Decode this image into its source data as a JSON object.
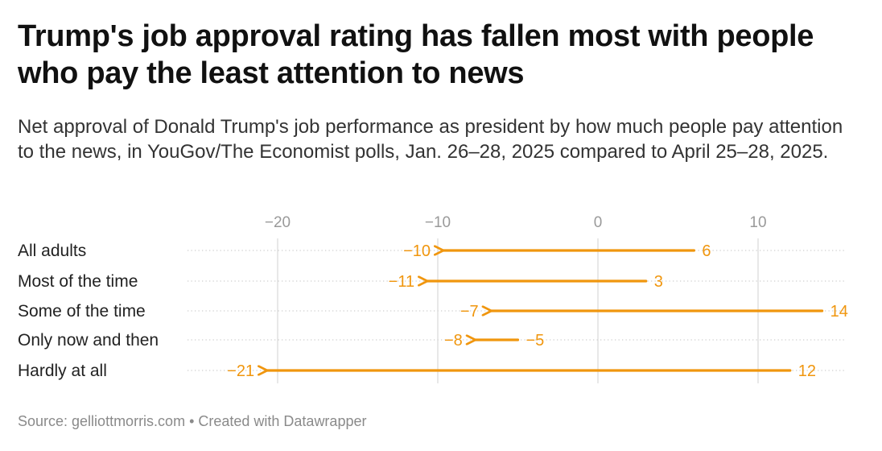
{
  "title": "Trump's job approval rating has fallen most with people who pay the least attention to news",
  "subtitle": "Net approval of Donald Trump's job performance as president by how much people pay attention to the news, in YouGov/The Economist polls, Jan. 26–28, 2025 compared to April 25–28, 2025.",
  "footer": "Source: gelliottmorris.com • Created with Datawrapper",
  "colors": {
    "arrow": "#F0960E",
    "grid": "#d9d9d9",
    "dots": "#cfcfcf",
    "ticks": "#9a9a9a"
  },
  "chart_data": {
    "type": "arrow",
    "xlim": [
      -22,
      15
    ],
    "x_ticks": [
      -20,
      -10,
      0,
      10
    ],
    "x_tick_labels": [
      "−20",
      "−10",
      "0",
      "10"
    ],
    "categories": [
      "All adults",
      "Most of the time",
      "Some of the time",
      "Only now and then",
      "Hardly at all"
    ],
    "series": [
      {
        "name": "Jan. 26–28, 2025",
        "values": [
          6,
          3,
          14,
          -5,
          12
        ],
        "labels": [
          "6",
          "3",
          "14",
          "−5",
          "12"
        ]
      },
      {
        "name": "April 25–28, 2025",
        "values": [
          -10,
          -11,
          -7,
          -8,
          -21
        ],
        "labels": [
          "−10",
          "−11",
          "−7",
          "−8",
          "−21"
        ]
      }
    ]
  }
}
